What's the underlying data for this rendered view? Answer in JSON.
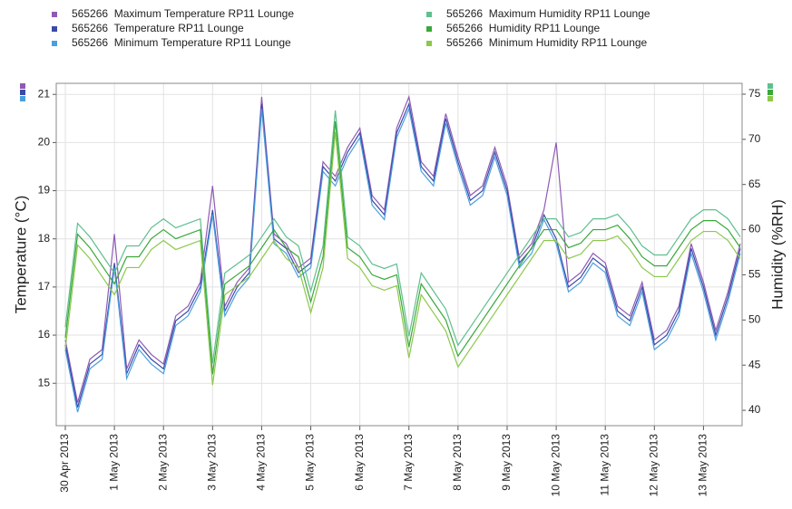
{
  "chart_data": {
    "type": "line",
    "y_label": "Temperature (°C)",
    "y2_label": "Humidity (%RH)",
    "grid": true,
    "categories": [
      "30 Apr 2013",
      null,
      null,
      null,
      "1 May 2013",
      null,
      null,
      null,
      "2 May 2013",
      null,
      null,
      null,
      "3 May 2013",
      null,
      null,
      null,
      "4 May 2013",
      null,
      null,
      null,
      "5 May 2013",
      null,
      null,
      null,
      "6 May 2013",
      null,
      null,
      null,
      "7 May 2013",
      null,
      null,
      null,
      "8 May 2013",
      null,
      null,
      null,
      "9 May 2013",
      null,
      null,
      null,
      "10 May 2013",
      null,
      null,
      null,
      "11 May 2013",
      null,
      null,
      null,
      "12 May 2013",
      null,
      null,
      null,
      "13 May 2013",
      null,
      null,
      null
    ],
    "ylim": [
      14.12,
      21.23
    ],
    "yticks": [
      15,
      16,
      17,
      18,
      19,
      20,
      21
    ],
    "y2lim": [
      38.3,
      76.2
    ],
    "y2ticks": [
      40,
      45,
      50,
      55,
      60,
      65,
      70,
      75
    ],
    "series": [
      {
        "name": "565266  Maximum Temperature RP11 Lounge",
        "color": "#8e5ab5",
        "axis": "y",
        "values": [
          15.9,
          14.6,
          15.5,
          15.7,
          18.1,
          15.3,
          15.9,
          15.6,
          15.4,
          16.4,
          16.6,
          17.1,
          19.1,
          16.6,
          17.1,
          17.4,
          20.95,
          18.1,
          17.9,
          17.4,
          17.6,
          19.6,
          19.3,
          19.9,
          20.3,
          18.9,
          18.6,
          20.3,
          20.95,
          19.6,
          19.3,
          20.6,
          19.7,
          18.9,
          19.1,
          19.9,
          19.1,
          17.6,
          17.9,
          18.6,
          20.0,
          17.1,
          17.3,
          17.7,
          17.5,
          16.6,
          16.4,
          17.1,
          15.9,
          16.1,
          16.6,
          17.9,
          17.1,
          16.1,
          16.9,
          17.9
        ]
      },
      {
        "name": "565266  Temperature RP11 Lounge",
        "color": "#3b4aa8",
        "axis": "y",
        "values": [
          15.8,
          14.5,
          15.4,
          15.6,
          17.5,
          15.2,
          15.8,
          15.5,
          15.3,
          16.3,
          16.5,
          17.0,
          18.6,
          16.5,
          17.0,
          17.3,
          20.8,
          18.0,
          17.8,
          17.3,
          17.5,
          19.5,
          19.2,
          19.8,
          20.2,
          18.8,
          18.5,
          20.2,
          20.8,
          19.5,
          19.2,
          20.5,
          19.6,
          18.8,
          19.0,
          19.8,
          19.0,
          17.5,
          17.8,
          18.5,
          18.0,
          17.0,
          17.2,
          17.6,
          17.4,
          16.5,
          16.3,
          17.0,
          15.8,
          16.0,
          16.5,
          17.8,
          17.0,
          16.0,
          16.8,
          17.8
        ]
      },
      {
        "name": "565266  Minimum Temperature RP11 Lounge",
        "color": "#4a9fdf",
        "axis": "y",
        "values": [
          15.7,
          14.4,
          15.3,
          15.5,
          17.4,
          15.1,
          15.7,
          15.4,
          15.2,
          16.2,
          16.4,
          16.9,
          18.5,
          16.4,
          16.9,
          17.2,
          20.7,
          17.9,
          17.7,
          17.2,
          17.4,
          19.4,
          19.1,
          19.7,
          20.1,
          18.7,
          18.4,
          20.1,
          20.7,
          19.4,
          19.1,
          20.4,
          19.5,
          18.7,
          18.9,
          19.7,
          18.9,
          17.4,
          17.7,
          18.4,
          17.9,
          16.9,
          17.1,
          17.5,
          17.3,
          16.4,
          16.2,
          16.9,
          15.7,
          15.9,
          16.4,
          17.7,
          16.9,
          15.9,
          16.7,
          17.7
        ]
      },
      {
        "name": "565266  Maximum Humidity RP11 Lounge",
        "color": "#5fbf8f",
        "axis": "y2",
        "values": [
          49.2,
          60.7,
          59.2,
          57.2,
          55.2,
          58.2,
          58.2,
          60.2,
          61.2,
          60.2,
          60.7,
          61.2,
          45.2,
          55.2,
          56.2,
          57.2,
          59.2,
          61.2,
          59.2,
          58.2,
          53.2,
          58.2,
          73.2,
          59.2,
          58.2,
          56.2,
          55.7,
          56.2,
          48.2,
          55.2,
          53.2,
          51.2,
          47.2,
          49.2,
          51.2,
          53.2,
          55.2,
          57.2,
          59.2,
          61.2,
          61.2,
          59.2,
          59.7,
          61.2,
          61.2,
          61.7,
          60.2,
          58.2,
          57.2,
          57.2,
          59.2,
          61.2,
          62.2,
          62.2,
          61.2,
          59.2
        ]
      },
      {
        "name": "565266  Humidity RP11 Lounge",
        "color": "#3aa83a",
        "axis": "y2",
        "values": [
          48,
          59.5,
          58,
          56,
          54,
          57,
          57,
          59,
          60,
          59,
          59.5,
          60,
          44,
          54,
          55,
          56,
          58,
          60,
          58,
          57,
          52,
          57,
          72,
          58,
          57,
          55,
          54.5,
          55,
          47,
          54,
          52,
          50,
          46,
          48,
          50,
          52,
          54,
          56,
          58,
          60,
          60,
          58,
          58.5,
          60,
          60,
          60.5,
          59,
          57,
          56,
          56,
          58,
          60,
          61,
          61,
          60,
          58
        ]
      },
      {
        "name": "565266  Minimum Humidity RP11 Lounge",
        "color": "#8cc84b",
        "axis": "y2",
        "values": [
          46.8,
          58.3,
          56.8,
          54.8,
          52.8,
          55.8,
          55.8,
          57.8,
          58.8,
          57.8,
          58.3,
          58.8,
          42.8,
          52.8,
          53.8,
          54.8,
          56.8,
          58.8,
          56.8,
          55.8,
          50.8,
          55.8,
          70.8,
          56.8,
          55.8,
          53.8,
          53.3,
          53.8,
          45.8,
          52.8,
          50.8,
          48.8,
          44.8,
          46.8,
          48.8,
          50.8,
          52.8,
          54.8,
          56.8,
          58.8,
          58.8,
          56.8,
          57.3,
          58.8,
          58.8,
          59.3,
          57.8,
          55.8,
          54.8,
          54.8,
          56.8,
          58.8,
          59.8,
          59.8,
          58.8,
          56.8
        ]
      }
    ]
  }
}
